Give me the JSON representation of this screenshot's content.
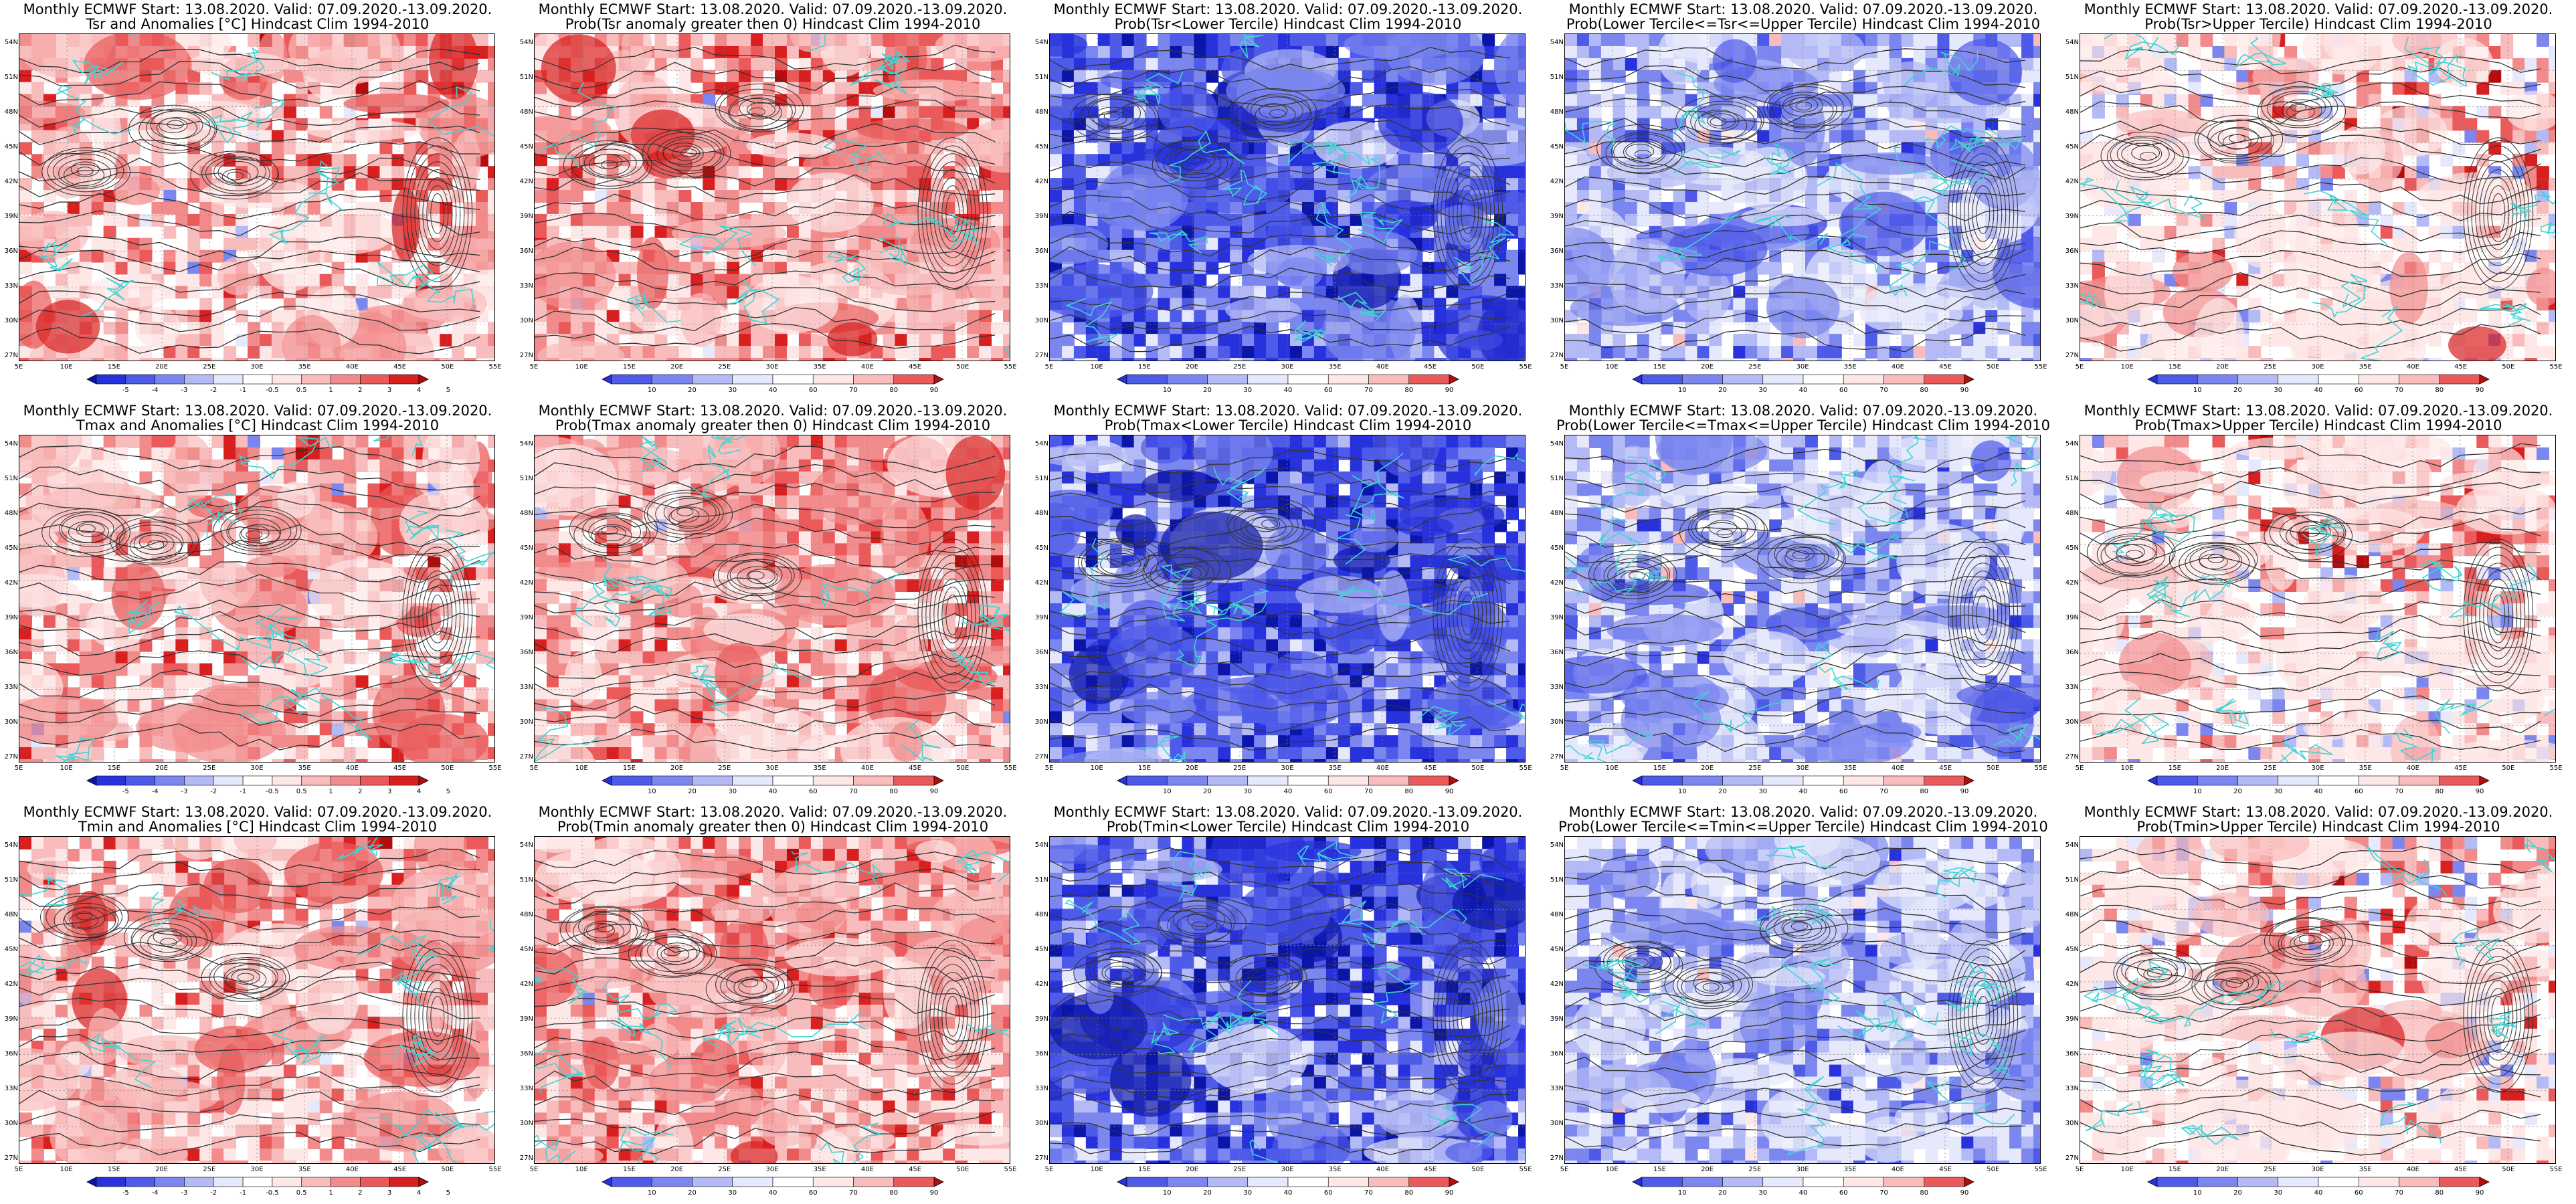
{
  "colors": {
    "red_palette": [
      "#fde7e7",
      "#f9bcbc",
      "#f28b8b",
      "#ea5a5a",
      "#d92020",
      "#b50d0d"
    ],
    "blue_palette": [
      "#e6e8fb",
      "#b3baf5",
      "#7b86ef",
      "#4e5ae8",
      "#2832dc",
      "#0b16a8"
    ],
    "contour": "#333333",
    "coast": "#3fd4d4"
  },
  "axes": {
    "lat_labels": [
      "54N",
      "51N",
      "48N",
      "45N",
      "42N",
      "39N",
      "36N",
      "33N",
      "30N",
      "27N"
    ],
    "lon_labels": [
      "5E",
      "10E",
      "15E",
      "20E",
      "25E",
      "30E",
      "35E",
      "40E",
      "45E",
      "50E",
      "55E"
    ]
  },
  "colorbars": {
    "anomaly": [
      "-5",
      "-4",
      "-3",
      "-2",
      "-1",
      "-0.5",
      "0.5",
      "1",
      "2",
      "3",
      "4",
      "5"
    ],
    "probability": [
      "10",
      "20",
      "30",
      "40",
      "60",
      "70",
      "80",
      "90"
    ]
  },
  "panels": [
    {
      "title1": "Monthly ECMWF Start: 13.08.2020. Valid: 07.09.2020.-13.09.2020.",
      "title2": "Tsr and Anomalies [°C] Hindcast Clim 1994-2010",
      "scheme": "anom",
      "colorbar": "anomaly"
    },
    {
      "title1": "Monthly ECMWF Start: 13.08.2020. Valid: 07.09.2020.-13.09.2020.",
      "title2": "Prob(Tsr anomaly greater then 0) Hindcast Clim 1994-2010",
      "scheme": "prob-red",
      "colorbar": "probability"
    },
    {
      "title1": "Monthly ECMWF Start: 13.08.2020. Valid: 07.09.2020.-13.09.2020.",
      "title2": "Prob(Tsr<Lower Tercile) Hindcast Clim 1994-2010",
      "scheme": "lower",
      "colorbar": "probability"
    },
    {
      "title1": "Monthly ECMWF Start: 13.08.2020. Valid: 07.09.2020.-13.09.2020.",
      "title2": "Prob(Lower Tercile<=Tsr<=Upper Tercile) Hindcast Clim 1994-2010",
      "scheme": "middle",
      "colorbar": "probability"
    },
    {
      "title1": "Monthly ECMWF Start: 13.08.2020. Valid: 07.09.2020.-13.09.2020.",
      "title2": "Prob(Tsr>Upper Tercile) Hindcast Clim 1994-2010",
      "scheme": "upper",
      "colorbar": "probability"
    },
    {
      "title1": "Monthly ECMWF Start: 13.08.2020. Valid: 07.09.2020.-13.09.2020.",
      "title2": "Tmax and Anomalies [°C] Hindcast Clim 1994-2010",
      "scheme": "anom",
      "colorbar": "anomaly"
    },
    {
      "title1": "Monthly ECMWF Start: 13.08.2020. Valid: 07.09.2020.-13.09.2020.",
      "title2": "Prob(Tmax anomaly greater then 0) Hindcast Clim 1994-2010",
      "scheme": "prob-red",
      "colorbar": "probability"
    },
    {
      "title1": "Monthly ECMWF Start: 13.08.2020. Valid: 07.09.2020.-13.09.2020.",
      "title2": "Prob(Tmax<Lower Tercile) Hindcast Clim 1994-2010",
      "scheme": "lower",
      "colorbar": "probability"
    },
    {
      "title1": "Monthly ECMWF Start: 13.08.2020. Valid: 07.09.2020.-13.09.2020.",
      "title2": "Prob(Lower Tercile<=Tmax<=Upper Tercile) Hindcast Clim 1994-2010",
      "scheme": "middle",
      "colorbar": "probability"
    },
    {
      "title1": "Monthly ECMWF Start: 13.08.2020. Valid: 07.09.2020.-13.09.2020.",
      "title2": "Prob(Tmax>Upper Tercile) Hindcast Clim 1994-2010",
      "scheme": "upper",
      "colorbar": "probability"
    },
    {
      "title1": "Monthly ECMWF Start: 13.08.2020. Valid: 07.09.2020.-13.09.2020.",
      "title2": "Tmin and Anomalies [°C] Hindcast Clim 1994-2010",
      "scheme": "anom",
      "colorbar": "anomaly"
    },
    {
      "title1": "Monthly ECMWF Start: 13.08.2020. Valid: 07.09.2020.-13.09.2020.",
      "title2": "Prob(Tmin anomaly greater then 0) Hindcast Clim 1994-2010",
      "scheme": "prob-red",
      "colorbar": "probability"
    },
    {
      "title1": "Monthly ECMWF Start: 13.08.2020. Valid: 07.09.2020.-13.09.2020.",
      "title2": "Prob(Tmin<Lower Tercile) Hindcast Clim 1994-2010",
      "scheme": "lower",
      "colorbar": "probability"
    },
    {
      "title1": "Monthly ECMWF Start: 13.08.2020. Valid: 07.09.2020.-13.09.2020.",
      "title2": "Prob(Lower Tercile<=Tmin<=Upper Tercile) Hindcast Clim 1994-2010",
      "scheme": "middle",
      "colorbar": "probability"
    },
    {
      "title1": "Monthly ECMWF Start: 13.08.2020. Valid: 07.09.2020.-13.09.2020.",
      "title2": "Prob(Tmin>Upper Tercile) Hindcast Clim 1994-2010",
      "scheme": "upper",
      "colorbar": "probability"
    }
  ]
}
